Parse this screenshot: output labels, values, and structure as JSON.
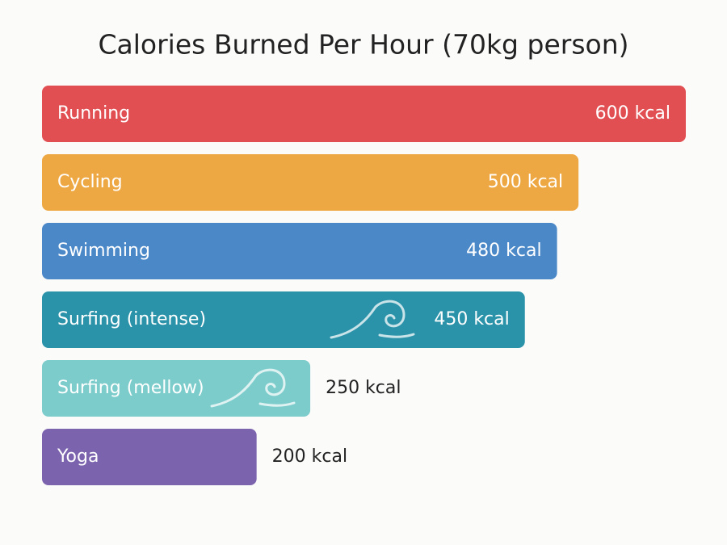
{
  "chart_data": {
    "type": "bar",
    "orientation": "horizontal",
    "title": "Calories Burned Per Hour (70kg person)",
    "categories": [
      "Running",
      "Cycling",
      "Swimming",
      "Surfing (intense)",
      "Surfing (mellow)",
      "Yoga"
    ],
    "values": [
      600,
      500,
      480,
      450,
      250,
      200
    ],
    "value_labels": [
      "600 kcal",
      "500 kcal",
      "480 kcal",
      "450 kcal",
      "250 kcal",
      "200 kcal"
    ],
    "colors": [
      "#e24f52",
      "#eea843",
      "#4b88c8",
      "#2b93a9",
      "#7dcccc",
      "#7c63ae"
    ]
  }
}
